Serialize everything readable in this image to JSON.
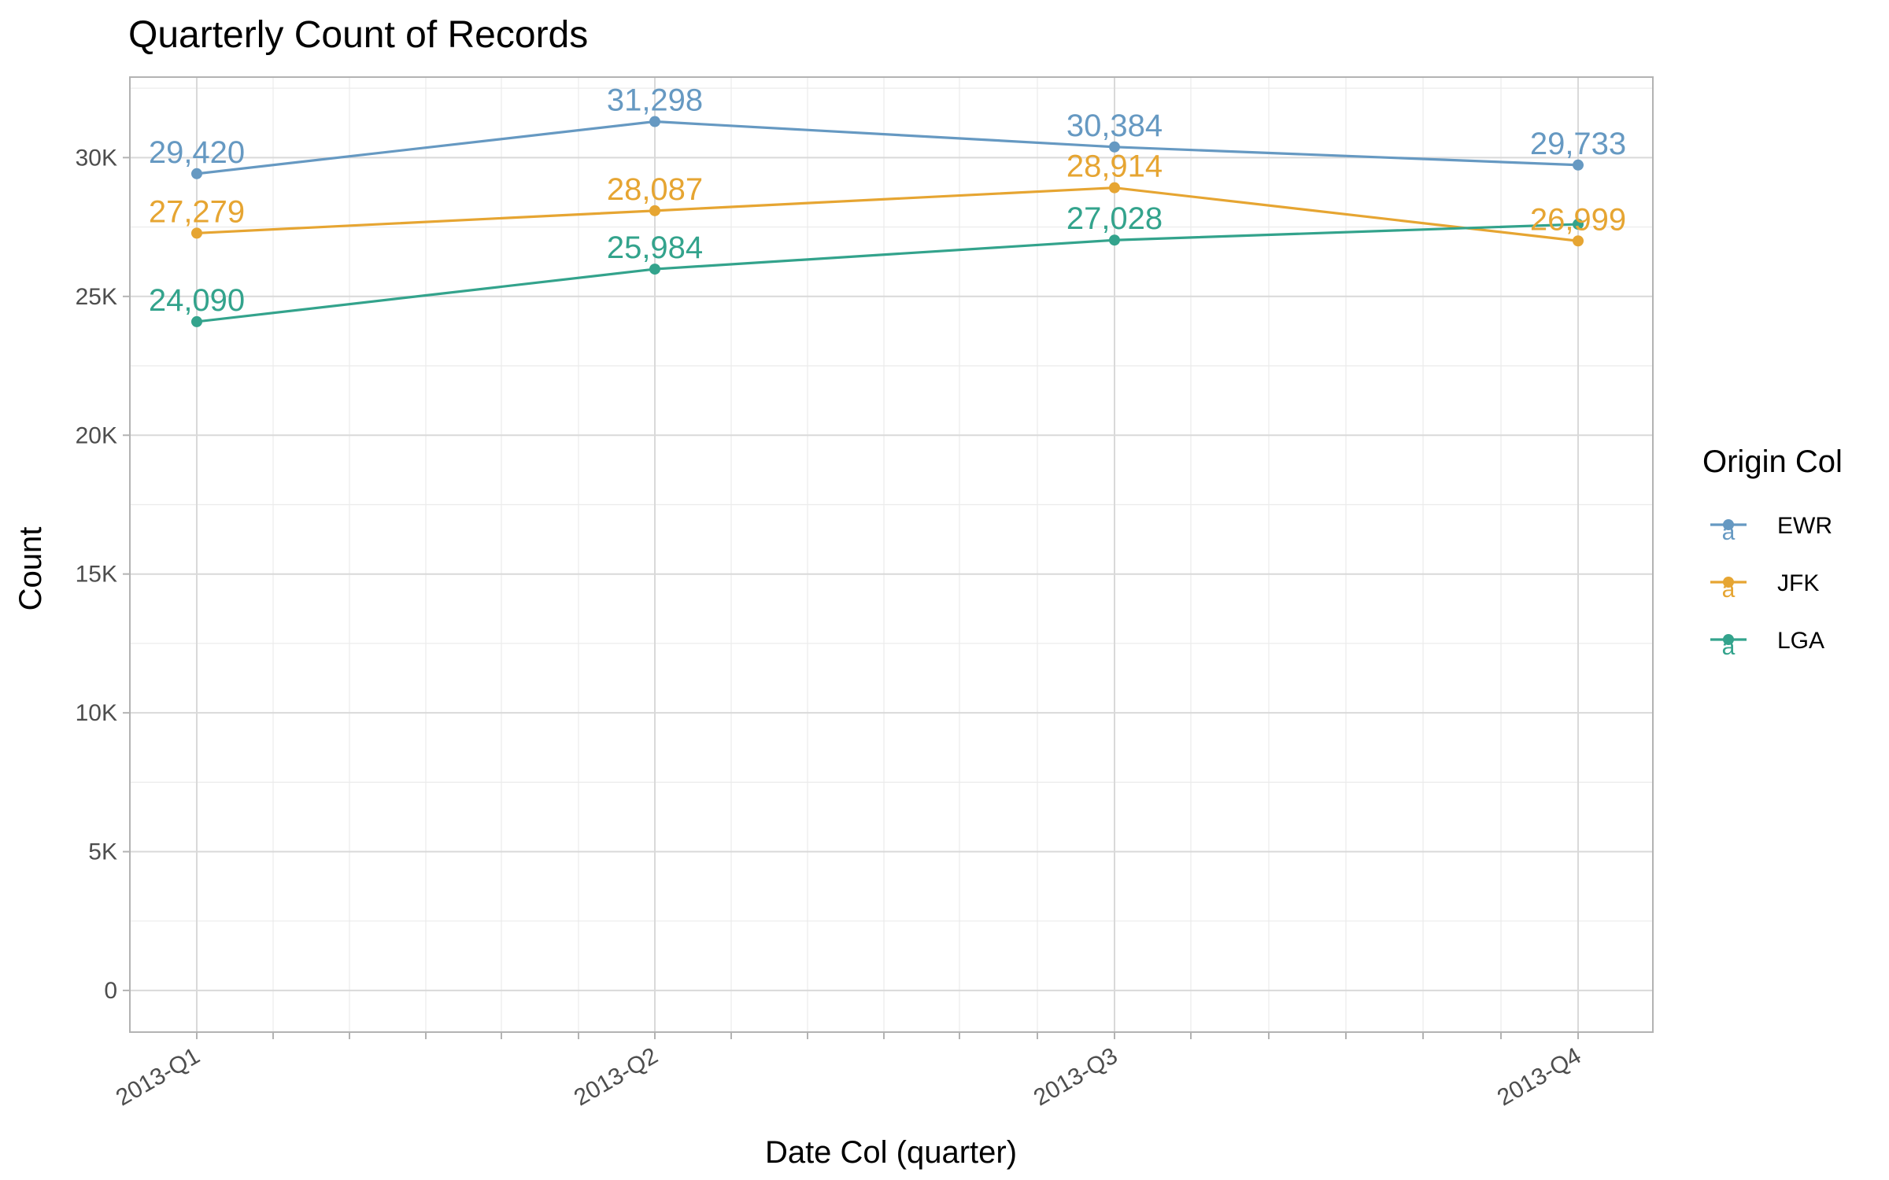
{
  "chart_data": {
    "type": "line",
    "title": "Quarterly Count of Records",
    "xlabel": "Date Col (quarter)",
    "ylabel": "Count",
    "categories": [
      "2013-Q1",
      "2013-Q2",
      "2013-Q3",
      "2013-Q4"
    ],
    "ylim": [
      -1500,
      32900
    ],
    "y_ticks": [
      0,
      5000,
      10000,
      15000,
      20000,
      25000,
      30000
    ],
    "y_tick_labels": [
      "0",
      "5K",
      "10K",
      "15K",
      "20K",
      "25K",
      "30K"
    ],
    "grid": true,
    "legend": {
      "title": "Origin Col",
      "position": "right",
      "key_glyph": "a"
    },
    "series": [
      {
        "name": "EWR",
        "color": "#6699C2",
        "values": [
          29420,
          31298,
          30384,
          29733
        ],
        "labels": [
          "29,420",
          "31,298",
          "30,384",
          "29,733"
        ]
      },
      {
        "name": "JFK",
        "color": "#E6A532",
        "values": [
          27279,
          28087,
          28914,
          26999
        ],
        "labels": [
          "27,279",
          "28,087",
          "28,914",
          "26,999"
        ]
      },
      {
        "name": "LGA",
        "color": "#33A38C",
        "values": [
          24090,
          25984,
          27028,
          27600
        ],
        "labels": [
          "24,090",
          "25,984",
          "27,028",
          ""
        ]
      }
    ]
  }
}
